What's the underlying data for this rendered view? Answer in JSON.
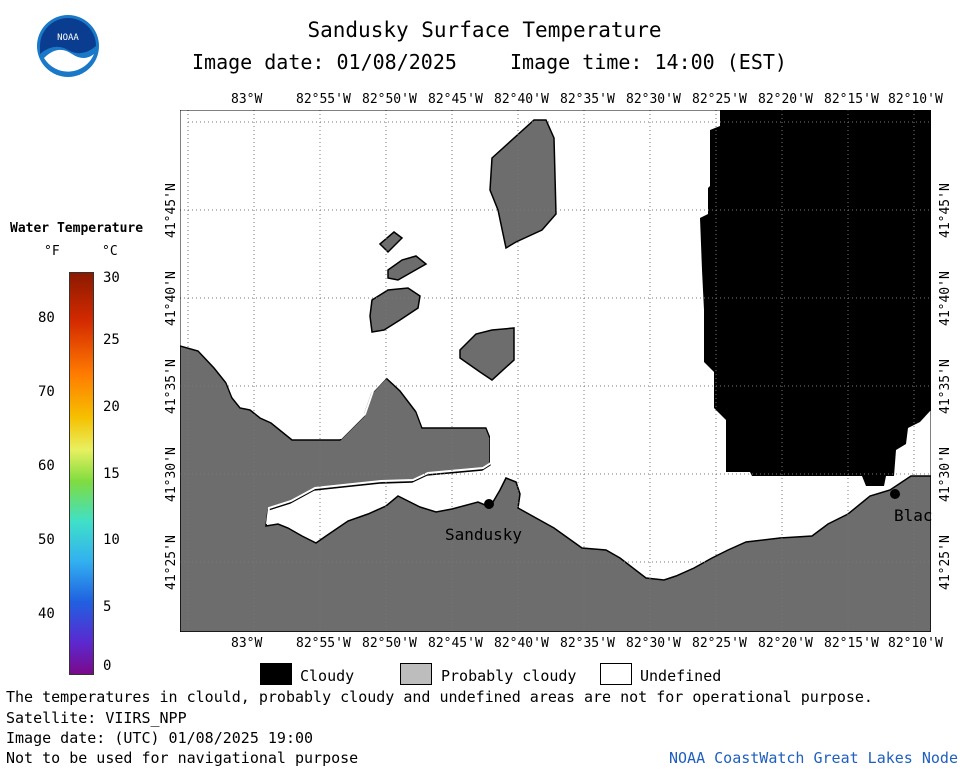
{
  "header": {
    "title": "Sandusky Surface Temperature",
    "image_date": "Image date: 01/08/2025",
    "image_time": "Image time: 14:00 (EST)",
    "logo_text": "NOAA"
  },
  "colorbar": {
    "title": "Water Temperature",
    "unit_f": "°F",
    "unit_c": "°C",
    "f_ticks": [
      "80",
      "70",
      "60",
      "50",
      "40"
    ],
    "c_ticks": [
      "30",
      "25",
      "20",
      "15",
      "10",
      "5",
      "0"
    ]
  },
  "map": {
    "lon_labels": [
      "83°W",
      "82°55'W",
      "82°50'W",
      "82°45'W",
      "82°40'W",
      "82°35'W",
      "82°30'W",
      "82°25'W",
      "82°20'W",
      "82°15'W",
      "82°10'W"
    ],
    "lat_labels": [
      "41°45'N",
      "41°40'N",
      "41°35'N",
      "41°30'N",
      "41°25'N"
    ],
    "places": {
      "sandusky": "Sandusky",
      "blac": "Blac"
    }
  },
  "legend": {
    "cloudy": "Cloudy",
    "probably_cloudy": "Probably cloudy",
    "undefined": "Undefined"
  },
  "footer": {
    "disclaimer": "The temperatures in clould, probably cloudy and undefined areas are not for operational purpose.",
    "satellite": "Satellite: VIIRS_NPP",
    "utc_date": "Image date: (UTC) 01/08/2025  19:00",
    "nav_warning": "Not to be used for navigational purpose",
    "credit": "NOAA CoastWatch Great Lakes Node"
  },
  "colors": {
    "land": "#6d6d6d",
    "cloud": "#000000",
    "undefined": "#ffffff",
    "credit": "#1f5fbf"
  }
}
